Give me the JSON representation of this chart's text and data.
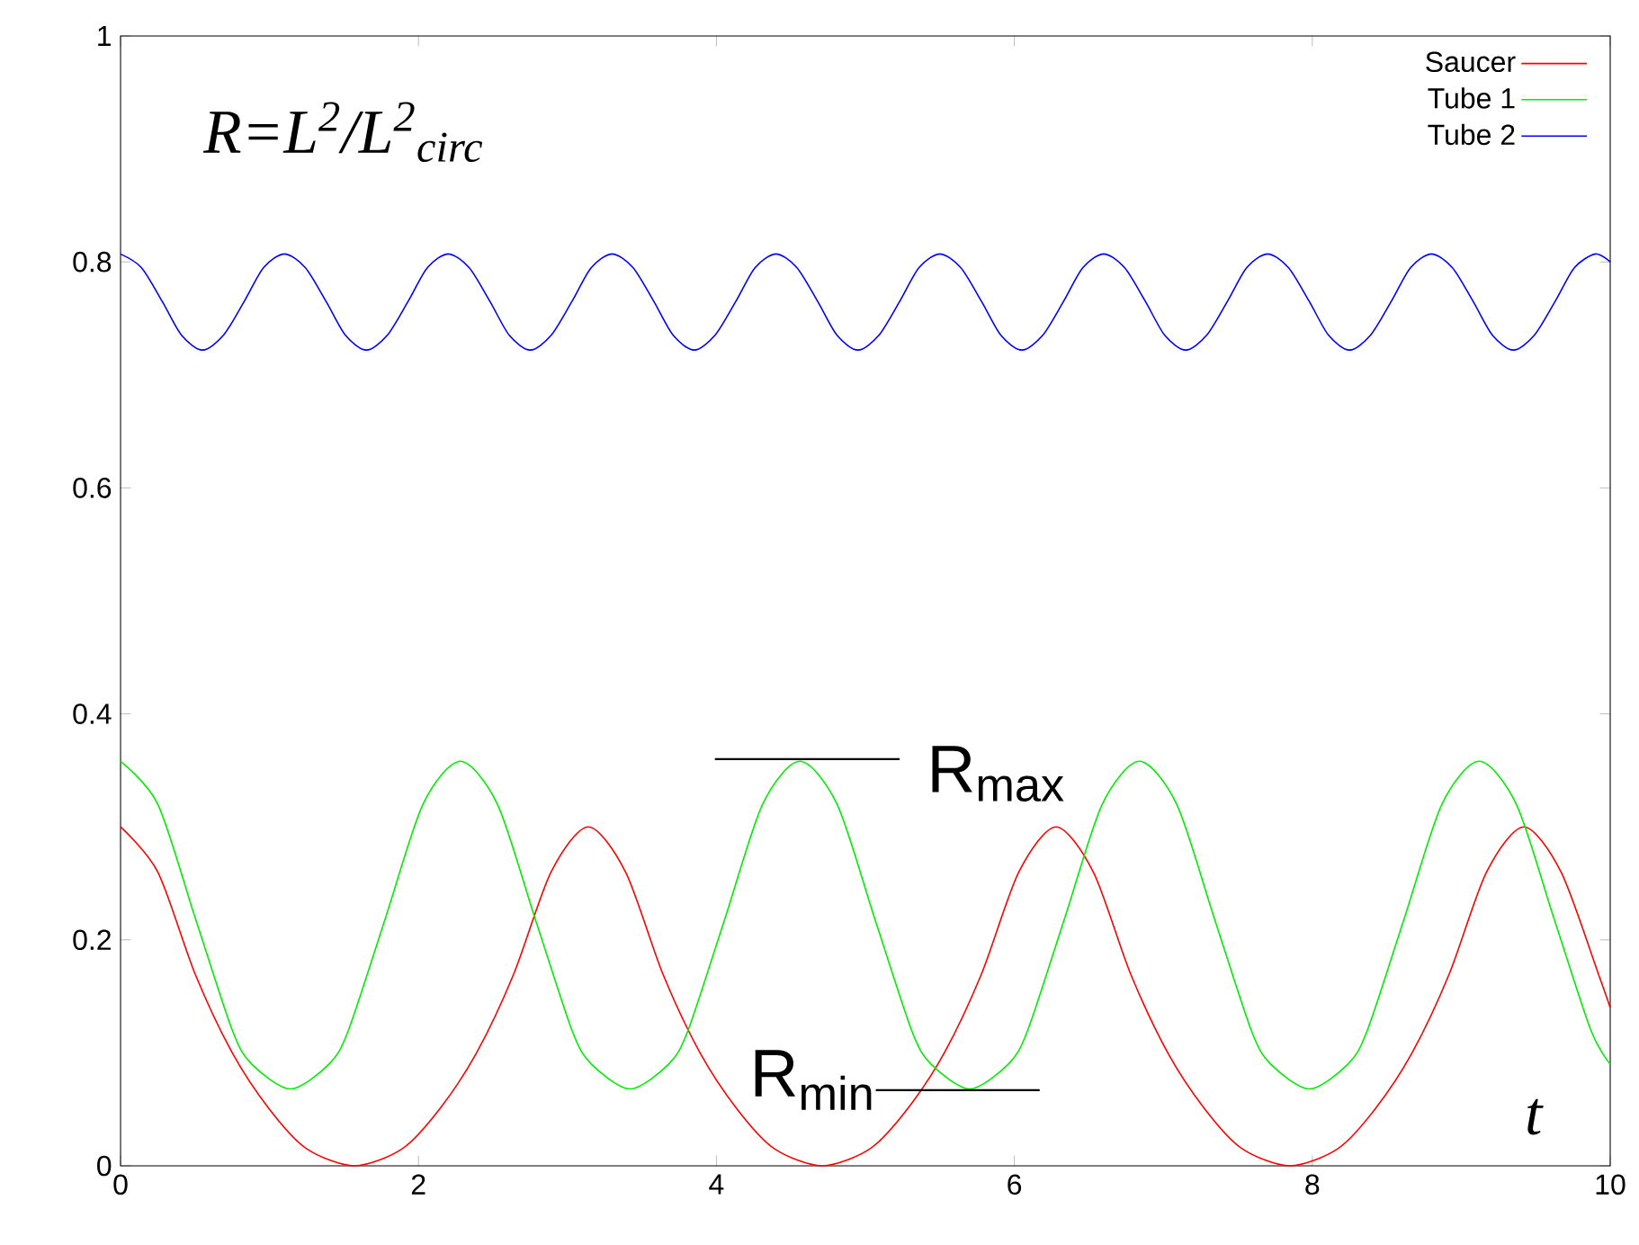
{
  "chart_data": {
    "type": "line",
    "xlabel": "t",
    "annotations": [
      "R=L$^{2}$/L$^{2}$$_{circ}$",
      "R$_{max}$",
      "R$_{min}$"
    ],
    "xlim": [
      0,
      10
    ],
    "ylim": [
      0,
      1
    ],
    "xticks": [
      0,
      2,
      4,
      6,
      8,
      10
    ],
    "yticks": [
      0,
      0.2,
      0.4,
      0.6,
      0.8,
      1
    ],
    "legend": "top right",
    "grid": false,
    "line_style": "solid",
    "marker": "none",
    "series": [
      {
        "name": "Saucer",
        "color": "#ff0000",
        "x": [
          0,
          0.25,
          0.5,
          0.75,
          1,
          1.25,
          1.57,
          1.89,
          2.14,
          2.39,
          2.64,
          2.89,
          3.14,
          3.39,
          3.64,
          3.89,
          4.14,
          4.39,
          4.71,
          5.03,
          5.28,
          5.53,
          5.78,
          6.03,
          6.28,
          6.53,
          6.78,
          7.03,
          7.28,
          7.53,
          7.85,
          8.17,
          8.42,
          8.67,
          8.92,
          9.17,
          9.42,
          9.67,
          9.92,
          10
        ],
        "values": [
          0.3,
          0.26,
          0.17,
          0.1,
          0.05,
          0.015,
          0,
          0.015,
          0.05,
          0.1,
          0.17,
          0.26,
          0.3,
          0.26,
          0.17,
          0.1,
          0.05,
          0.015,
          0,
          0.015,
          0.05,
          0.1,
          0.17,
          0.26,
          0.3,
          0.26,
          0.17,
          0.1,
          0.05,
          0.015,
          0,
          0.015,
          0.05,
          0.1,
          0.17,
          0.26,
          0.3,
          0.26,
          0.17,
          0.14
        ]
      },
      {
        "name": "Tube 1",
        "color": "#00ee00",
        "x": [
          0,
          0.25,
          0.5,
          0.75,
          0.88,
          1.14,
          1.4,
          1.53,
          1.78,
          2.03,
          2.28,
          2.53,
          2.78,
          3.03,
          3.16,
          3.42,
          3.68,
          3.81,
          4.06,
          4.31,
          4.56,
          4.81,
          5.06,
          5.31,
          5.44,
          5.7,
          5.96,
          6.09,
          6.34,
          6.59,
          6.84,
          7.09,
          7.34,
          7.59,
          7.72,
          7.98,
          8.24,
          8.37,
          8.62,
          8.87,
          9.12,
          9.37,
          9.62,
          9.87,
          10
        ],
        "values": [
          0.358,
          0.32,
          0.22,
          0.12,
          0.09,
          0.068,
          0.09,
          0.12,
          0.22,
          0.32,
          0.358,
          0.32,
          0.22,
          0.12,
          0.09,
          0.068,
          0.09,
          0.12,
          0.22,
          0.32,
          0.358,
          0.32,
          0.22,
          0.12,
          0.09,
          0.068,
          0.09,
          0.12,
          0.22,
          0.32,
          0.358,
          0.32,
          0.22,
          0.12,
          0.09,
          0.068,
          0.09,
          0.12,
          0.22,
          0.32,
          0.358,
          0.32,
          0.22,
          0.12,
          0.09
        ]
      },
      {
        "name": "Tube 2",
        "color": "#0000ff",
        "x": [
          0,
          0.14,
          0.28,
          0.41,
          0.55,
          0.69,
          0.83,
          0.96,
          1.1,
          1.24,
          1.38,
          1.51,
          1.65,
          1.79,
          1.93,
          2.06,
          2.2,
          2.34,
          2.48,
          2.61,
          2.75,
          2.89,
          3.03,
          3.16,
          3.3,
          3.44,
          3.58,
          3.71,
          3.85,
          3.99,
          4.13,
          4.26,
          4.4,
          4.54,
          4.68,
          4.81,
          4.95,
          5.09,
          5.23,
          5.36,
          5.5,
          5.64,
          5.78,
          5.91,
          6.05,
          6.19,
          6.33,
          6.46,
          6.6,
          6.74,
          6.88,
          7.01,
          7.15,
          7.29,
          7.43,
          7.56,
          7.7,
          7.84,
          7.98,
          8.11,
          8.25,
          8.39,
          8.53,
          8.66,
          8.8,
          8.94,
          9.08,
          9.21,
          9.35,
          9.49,
          9.63,
          9.76,
          9.9,
          10
        ],
        "values": [
          0.807,
          0.795,
          0.765,
          0.735,
          0.722,
          0.735,
          0.765,
          0.795,
          0.807,
          0.795,
          0.765,
          0.735,
          0.722,
          0.735,
          0.765,
          0.795,
          0.807,
          0.795,
          0.765,
          0.735,
          0.722,
          0.735,
          0.765,
          0.795,
          0.807,
          0.795,
          0.765,
          0.735,
          0.722,
          0.735,
          0.765,
          0.795,
          0.807,
          0.795,
          0.765,
          0.735,
          0.722,
          0.735,
          0.765,
          0.795,
          0.807,
          0.795,
          0.765,
          0.735,
          0.722,
          0.735,
          0.765,
          0.795,
          0.807,
          0.795,
          0.765,
          0.735,
          0.722,
          0.735,
          0.765,
          0.795,
          0.807,
          0.795,
          0.765,
          0.735,
          0.722,
          0.735,
          0.765,
          0.795,
          0.807,
          0.795,
          0.765,
          0.735,
          0.722,
          0.735,
          0.765,
          0.795,
          0.807,
          0.8
        ]
      }
    ]
  }
}
